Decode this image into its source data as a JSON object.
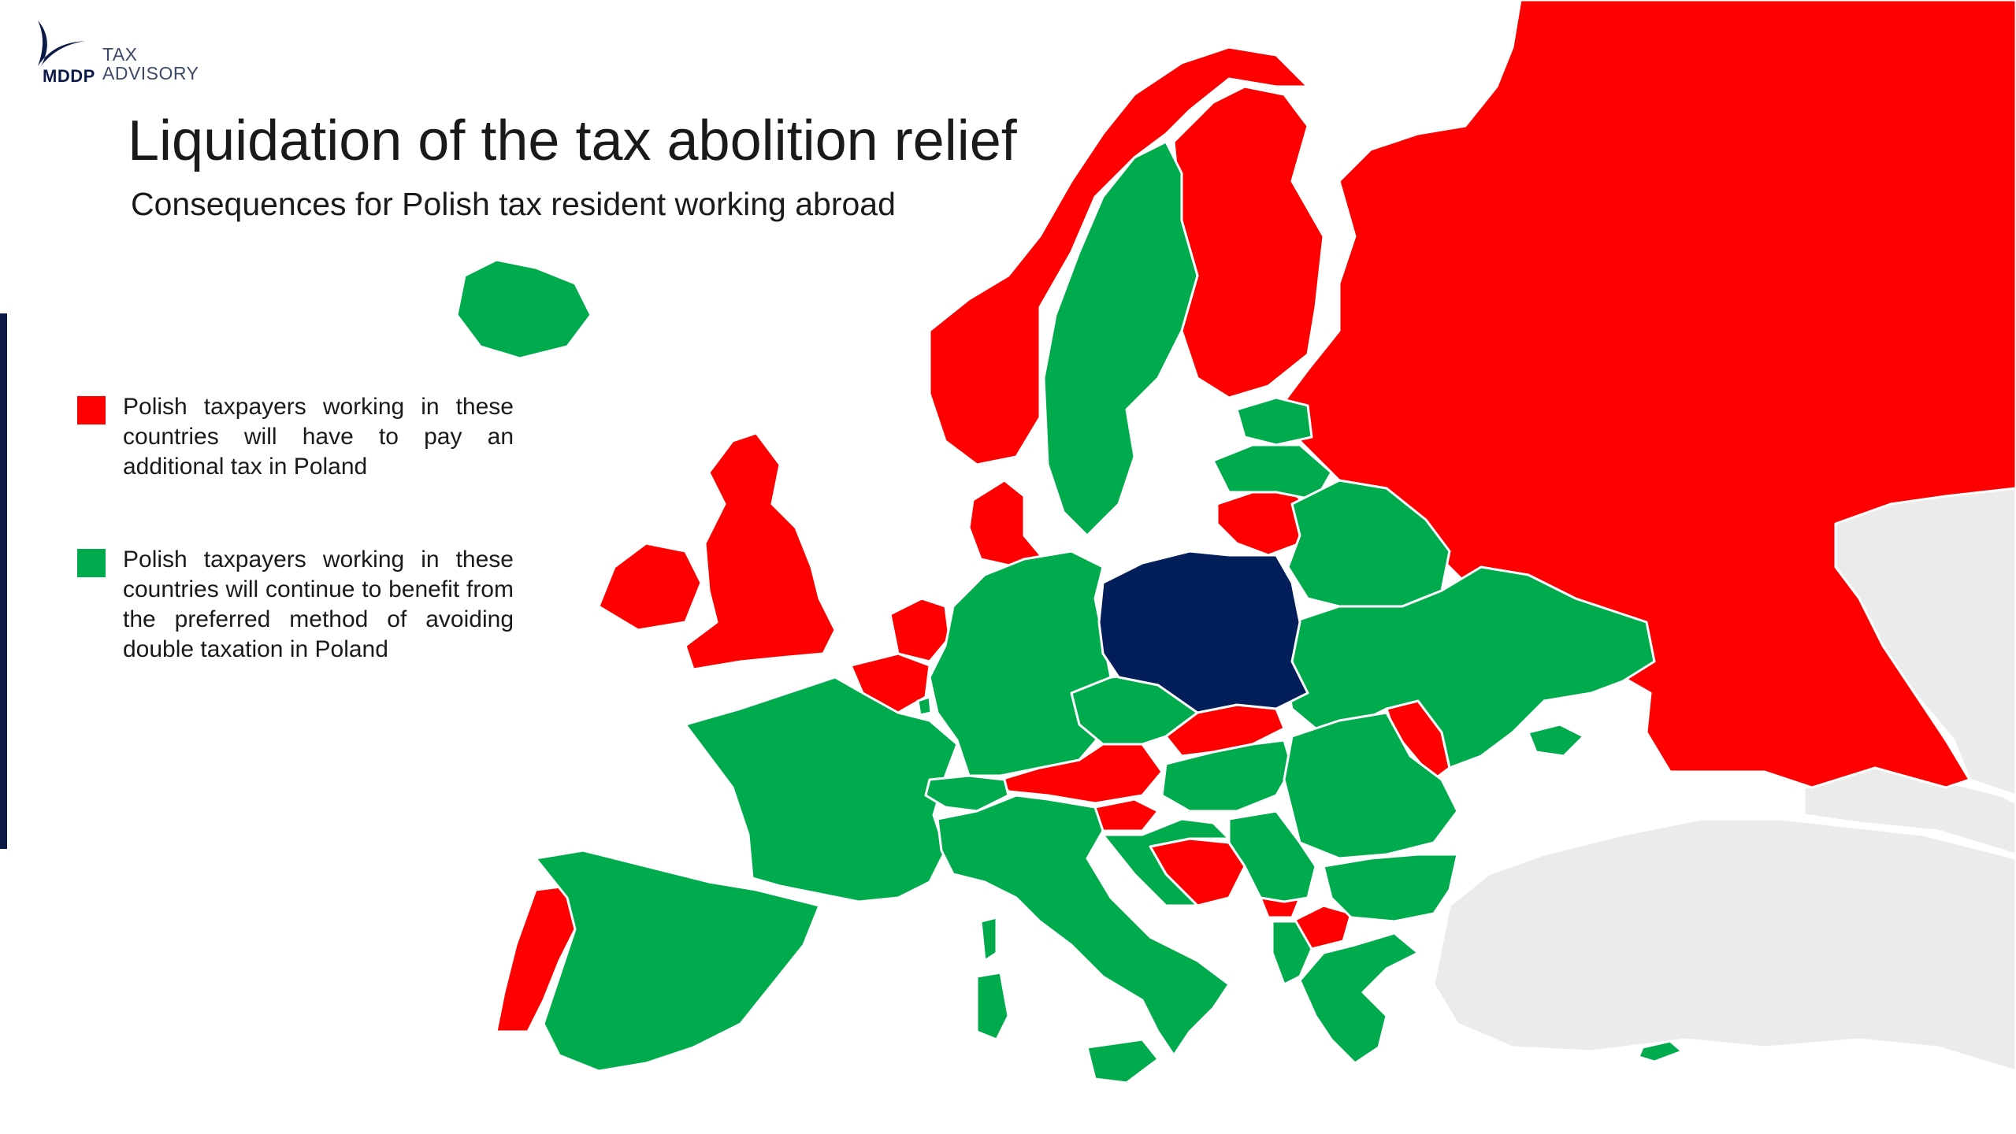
{
  "colors": {
    "additional_tax": "#fe0000",
    "continue_benefit": "#00ab4e",
    "poland": "#021e5b",
    "outside_scope": "#ebebeb",
    "background": "#ffffff"
  },
  "header": {
    "logo_brand": "MDDP",
    "logo_tagline_line1": "TAX",
    "logo_tagline_line2": "ADVISORY",
    "logo_icon": "swoosh-icon",
    "title": "Liquidation of the tax abolition relief",
    "subtitle": "Consequences for Polish tax resident working abroad"
  },
  "legend": [
    {
      "category": "additional_tax",
      "text": "Polish taxpayers working in these countries will have to pay an additional tax in Poland"
    },
    {
      "category": "continue_benefit",
      "text": "Polish taxpayers working in these countries will continue to benefit from the preferred method of avoiding double taxation in Poland"
    }
  ],
  "map": {
    "countries": [
      {
        "id": "russia",
        "category": "additional_tax"
      },
      {
        "id": "norway",
        "category": "additional_tax"
      },
      {
        "id": "finland",
        "category": "additional_tax"
      },
      {
        "id": "united-kingdom",
        "category": "additional_tax"
      },
      {
        "id": "ireland",
        "category": "additional_tax"
      },
      {
        "id": "denmark",
        "category": "additional_tax"
      },
      {
        "id": "netherlands",
        "category": "additional_tax"
      },
      {
        "id": "belgium",
        "category": "additional_tax"
      },
      {
        "id": "portugal",
        "category": "additional_tax"
      },
      {
        "id": "lithuania",
        "category": "additional_tax"
      },
      {
        "id": "austria",
        "category": "additional_tax"
      },
      {
        "id": "slovakia",
        "category": "additional_tax"
      },
      {
        "id": "slovenia",
        "category": "additional_tax"
      },
      {
        "id": "bosnia-and-herzegovina",
        "category": "additional_tax"
      },
      {
        "id": "montenegro",
        "category": "additional_tax"
      },
      {
        "id": "north-macedonia",
        "category": "additional_tax"
      },
      {
        "id": "moldova",
        "category": "additional_tax"
      },
      {
        "id": "iceland",
        "category": "continue_benefit"
      },
      {
        "id": "sweden",
        "category": "continue_benefit"
      },
      {
        "id": "estonia",
        "category": "continue_benefit"
      },
      {
        "id": "latvia",
        "category": "continue_benefit"
      },
      {
        "id": "belarus",
        "category": "continue_benefit"
      },
      {
        "id": "ukraine",
        "category": "continue_benefit"
      },
      {
        "id": "germany",
        "category": "continue_benefit"
      },
      {
        "id": "france",
        "category": "continue_benefit"
      },
      {
        "id": "spain",
        "category": "continue_benefit"
      },
      {
        "id": "luxembourg",
        "category": "continue_benefit"
      },
      {
        "id": "switzerland",
        "category": "continue_benefit"
      },
      {
        "id": "italy",
        "category": "continue_benefit"
      },
      {
        "id": "czech-republic",
        "category": "continue_benefit"
      },
      {
        "id": "hungary",
        "category": "continue_benefit"
      },
      {
        "id": "romania",
        "category": "continue_benefit"
      },
      {
        "id": "croatia",
        "category": "continue_benefit"
      },
      {
        "id": "serbia",
        "category": "continue_benefit"
      },
      {
        "id": "bulgaria",
        "category": "continue_benefit"
      },
      {
        "id": "albania",
        "category": "continue_benefit"
      },
      {
        "id": "greece",
        "category": "continue_benefit"
      },
      {
        "id": "crimea",
        "category": "continue_benefit"
      },
      {
        "id": "sardinia",
        "category": "continue_benefit"
      },
      {
        "id": "corsica",
        "category": "continue_benefit"
      },
      {
        "id": "sicily",
        "category": "continue_benefit"
      },
      {
        "id": "cyprus",
        "category": "continue_benefit"
      },
      {
        "id": "poland",
        "category": "poland"
      },
      {
        "id": "turkey",
        "category": "outside_scope"
      },
      {
        "id": "caucasus",
        "category": "outside_scope"
      },
      {
        "id": "kazakhstan",
        "category": "outside_scope"
      }
    ]
  }
}
